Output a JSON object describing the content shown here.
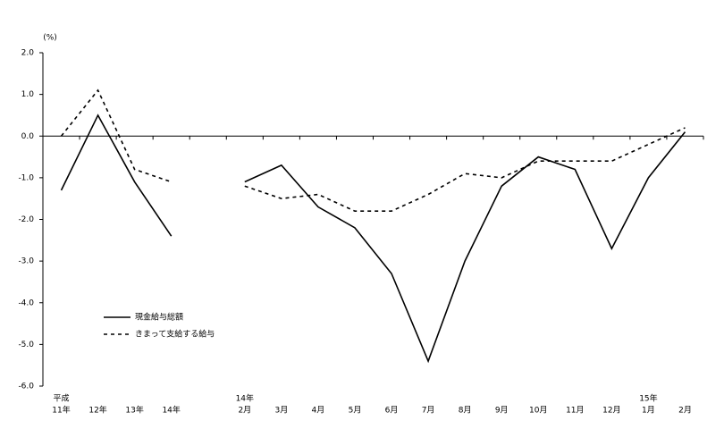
{
  "chart_data": {
    "type": "line",
    "y_label": "(%)",
    "category_groups": [
      "平成",
      null,
      null,
      null,
      null,
      "14年",
      null,
      null,
      null,
      null,
      null,
      null,
      null,
      null,
      null,
      null,
      "15年",
      null
    ],
    "categories": [
      "11年",
      "12年",
      "13年",
      "14年",
      null,
      "2月",
      "3月",
      "4月",
      "5月",
      "6月",
      "7月",
      "8月",
      "9月",
      "10月",
      "11月",
      "12月",
      "1月",
      "2月"
    ],
    "series": [
      {
        "name": "現金給与総額",
        "color": "#000000",
        "dash": "solid",
        "values": [
          -1.3,
          0.5,
          -1.1,
          -2.4,
          null,
          -1.1,
          -0.7,
          -1.7,
          -2.2,
          -3.3,
          -5.4,
          -3.0,
          -1.2,
          -0.5,
          -0.8,
          -2.7,
          -1.0,
          0.1
        ]
      },
      {
        "name": "きまって支給する給与",
        "color": "#000000",
        "dash": "dotted",
        "values": [
          0.0,
          1.1,
          -0.8,
          -1.1,
          null,
          -1.2,
          -1.5,
          -1.4,
          -1.8,
          -1.8,
          -1.4,
          -0.9,
          -1.0,
          -0.6,
          -0.6,
          -0.6,
          -0.2,
          0.2
        ]
      }
    ],
    "ylim": [
      -6,
      2
    ],
    "yticks": [
      {
        "value": 2,
        "label": "2.0"
      },
      {
        "value": 1,
        "label": "1.0"
      },
      {
        "value": 0,
        "label": "0.0"
      },
      {
        "value": -1,
        "label": "-1.0"
      },
      {
        "value": -2,
        "label": "-2.0"
      },
      {
        "value": -3,
        "label": "-3.0"
      },
      {
        "value": -4,
        "label": "-4.0"
      },
      {
        "value": -5,
        "label": "-5.0"
      },
      {
        "value": -6,
        "label": "-6.0"
      }
    ],
    "grid": false,
    "legend": "lower-left"
  }
}
